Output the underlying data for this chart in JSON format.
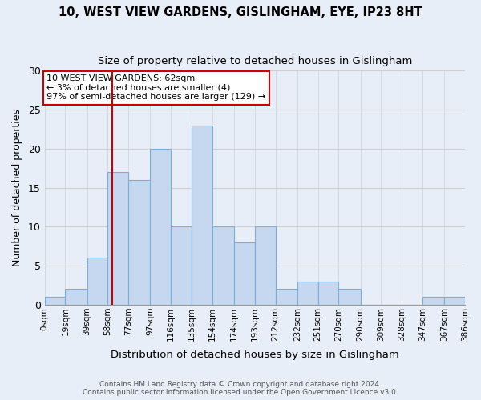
{
  "title": "10, WEST VIEW GARDENS, GISLINGHAM, EYE, IP23 8HT",
  "subtitle": "Size of property relative to detached houses in Gislingham",
  "xlabel": "Distribution of detached houses by size in Gislingham",
  "ylabel": "Number of detached properties",
  "bin_edges": [
    0,
    19,
    39,
    58,
    77,
    97,
    116,
    135,
    154,
    174,
    193,
    212,
    232,
    251,
    270,
    290,
    309,
    328,
    347,
    367,
    386
  ],
  "bin_labels": [
    "0sqm",
    "19sqm",
    "39sqm",
    "58sqm",
    "77sqm",
    "97sqm",
    "116sqm",
    "135sqm",
    "154sqm",
    "174sqm",
    "193sqm",
    "212sqm",
    "232sqm",
    "251sqm",
    "270sqm",
    "290sqm",
    "309sqm",
    "328sqm",
    "347sqm",
    "367sqm",
    "386sqm"
  ],
  "counts": [
    1,
    2,
    6,
    17,
    16,
    20,
    10,
    23,
    10,
    8,
    10,
    2,
    3,
    3,
    2,
    0,
    0,
    0,
    1,
    1
  ],
  "bar_color": "#c5d8f0",
  "bar_edge_color": "#7aafd4",
  "vline_x": 62,
  "vline_color": "#cc0000",
  "annotation_text": "10 WEST VIEW GARDENS: 62sqm\n← 3% of detached houses are smaller (4)\n97% of semi-detached houses are larger (129) →",
  "annotation_box_color": "#ffffff",
  "annotation_box_edge_color": "#cc0000",
  "ylim": [
    0,
    30
  ],
  "yticks": [
    0,
    5,
    10,
    15,
    20,
    25,
    30
  ],
  "grid_color": "#d0d0d0",
  "background_color": "#e8eef8",
  "footer_line1": "Contains HM Land Registry data © Crown copyright and database right 2024.",
  "footer_line2": "Contains public sector information licensed under the Open Government Licence v3.0."
}
